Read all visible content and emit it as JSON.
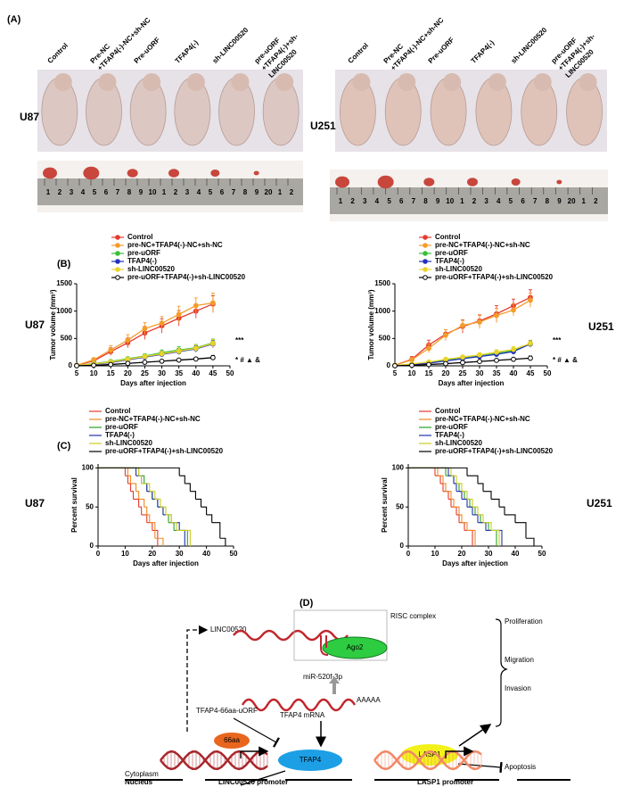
{
  "panel_labels": [
    "(A)",
    "(B)",
    "(C)",
    "(D)"
  ],
  "panel_a": {
    "groups": [
      [
        "Control"
      ],
      [
        "Pre-NC",
        "+TFAP4(-)-NC+sh-NC"
      ],
      [
        "Pre-uORF"
      ],
      [
        "TFAP4(-)"
      ],
      [
        "sh-LINC00520"
      ],
      [
        "pre-uORF",
        "+TFAP4(-)+sh-",
        "LINC00520"
      ]
    ],
    "cell_lines": [
      "U87",
      "U251"
    ],
    "ruler_labels": [
      "1",
      "2",
      "3",
      "4",
      "5",
      "6",
      "7",
      "8",
      "9",
      "10",
      "1",
      "2",
      "3",
      "4",
      "5",
      "6",
      "7",
      "8",
      "9",
      "20",
      "1",
      "2"
    ]
  },
  "chart_data": [
    {
      "type": "line",
      "side_label": "U87",
      "ylabel": "Tumor volume (mm³)",
      "xlabel": "Days after injection",
      "annotations": [
        "***",
        "* # ▲ &"
      ],
      "x": [
        5,
        10,
        15,
        20,
        25,
        30,
        35,
        40,
        45
      ],
      "xlim": [
        5,
        50
      ],
      "xticks": [
        5,
        10,
        15,
        20,
        25,
        30,
        35,
        40,
        45,
        50
      ],
      "ylim": [
        0,
        1500
      ],
      "yticks": [
        0,
        500,
        1000,
        1500
      ],
      "series": [
        {
          "name": "Control",
          "color": "#e53a2f",
          "marker": "filled",
          "values": [
            10,
            90,
            260,
            420,
            600,
            730,
            870,
            1000,
            1130
          ],
          "errors": [
            5,
            40,
            70,
            90,
            120,
            130,
            140,
            130,
            150
          ]
        },
        {
          "name": "pre-NC+TFAP4(-)-NC+sh-NC",
          "color": "#f39c2b",
          "marker": "filled",
          "values": [
            10,
            110,
            290,
            470,
            680,
            780,
            940,
            1100,
            1150
          ],
          "errors": [
            5,
            40,
            80,
            100,
            110,
            120,
            150,
            140,
            180
          ]
        },
        {
          "name": "pre-uORF",
          "color": "#3bbf3b",
          "marker": "filled",
          "values": [
            5,
            40,
            80,
            130,
            180,
            240,
            290,
            330,
            420
          ],
          "errors": [
            3,
            15,
            25,
            30,
            40,
            50,
            60,
            60,
            70
          ]
        },
        {
          "name": "TFAP4(-)",
          "color": "#2233bb",
          "marker": "filled",
          "values": [
            5,
            30,
            60,
            110,
            160,
            210,
            260,
            310,
            400
          ],
          "errors": [
            3,
            15,
            25,
            30,
            40,
            50,
            55,
            60,
            70
          ]
        },
        {
          "name": "sh-LINC00520",
          "color": "#e8d42a",
          "marker": "filled",
          "values": [
            5,
            35,
            70,
            120,
            170,
            220,
            270,
            320,
            410
          ],
          "errors": [
            3,
            15,
            25,
            30,
            40,
            50,
            55,
            60,
            70
          ]
        },
        {
          "name": "pre-uORF+TFAP4(-)+sh-LINC00520",
          "color": "#000000",
          "marker": "open",
          "values": [
            2,
            10,
            25,
            45,
            65,
            85,
            105,
            125,
            150
          ],
          "errors": [
            1,
            5,
            8,
            10,
            15,
            20,
            25,
            30,
            40
          ]
        }
      ]
    },
    {
      "type": "line",
      "side_label": "U251",
      "ylabel": "Tumor volume (mm³)",
      "xlabel": "Days after injection",
      "annotations": [
        "***",
        "* # ▲ &"
      ],
      "x": [
        5,
        10,
        15,
        20,
        25,
        30,
        35,
        40,
        45
      ],
      "xlim": [
        5,
        50
      ],
      "xticks": [
        5,
        10,
        15,
        20,
        25,
        30,
        35,
        40,
        45,
        50
      ],
      "ylim": [
        0,
        1500
      ],
      "yticks": [
        0,
        500,
        1000,
        1500
      ],
      "series": [
        {
          "name": "Control",
          "color": "#e53a2f",
          "marker": "filled",
          "values": [
            10,
            120,
            380,
            580,
            720,
            820,
            950,
            1100,
            1250
          ],
          "errors": [
            5,
            50,
            90,
            80,
            120,
            110,
            150,
            120,
            140
          ]
        },
        {
          "name": "pre-NC+TFAP4(-)-NC+sh-NC",
          "color": "#f39c2b",
          "marker": "filled",
          "values": [
            10,
            110,
            320,
            560,
            740,
            800,
            920,
            1020,
            1200
          ],
          "errors": [
            5,
            40,
            80,
            100,
            90,
            120,
            130,
            110,
            130
          ]
        },
        {
          "name": "pre-uORF",
          "color": "#3bbf3b",
          "marker": "filled",
          "values": [
            5,
            30,
            60,
            110,
            150,
            190,
            230,
            280,
            400
          ],
          "errors": [
            3,
            15,
            20,
            30,
            35,
            40,
            45,
            50,
            60
          ]
        },
        {
          "name": "TFAP4(-)",
          "color": "#2233bb",
          "marker": "filled",
          "values": [
            5,
            25,
            50,
            90,
            130,
            170,
            210,
            260,
            400
          ],
          "errors": [
            3,
            15,
            20,
            30,
            35,
            40,
            45,
            50,
            60
          ]
        },
        {
          "name": "sh-LINC00520",
          "color": "#e8d42a",
          "marker": "filled",
          "values": [
            5,
            35,
            70,
            120,
            160,
            200,
            250,
            300,
            410
          ],
          "errors": [
            3,
            15,
            20,
            30,
            35,
            40,
            45,
            50,
            60
          ]
        },
        {
          "name": "pre-uORF+TFAP4(-)+sh-LINC00520",
          "color": "#000000",
          "marker": "open",
          "values": [
            2,
            10,
            25,
            40,
            60,
            80,
            100,
            120,
            140
          ],
          "errors": [
            1,
            5,
            8,
            10,
            15,
            20,
            25,
            30,
            40
          ]
        }
      ]
    },
    {
      "type": "step",
      "side_label": "U87",
      "ylabel": "Percent survival",
      "xlabel": "Days after injection",
      "xlim": [
        0,
        50
      ],
      "xticks": [
        0,
        10,
        20,
        30,
        40,
        50
      ],
      "ylim": [
        0,
        105
      ],
      "yticks": [
        0,
        50,
        100
      ],
      "series": [
        {
          "name": "Control",
          "color": "#e53a2f",
          "x": [
            0,
            10,
            11,
            12,
            13,
            15,
            16,
            18,
            20,
            22
          ],
          "values": [
            100,
            90,
            80,
            70,
            60,
            50,
            40,
            30,
            20,
            0
          ]
        },
        {
          "name": "pre-NC+TFAP4(-)-NC+sh-NC",
          "color": "#f08a24",
          "x": [
            0,
            11,
            12,
            14,
            15,
            17,
            18,
            19,
            21,
            24
          ],
          "values": [
            100,
            90,
            80,
            70,
            60,
            50,
            40,
            30,
            10,
            0
          ]
        },
        {
          "name": "pre-uORF",
          "color": "#2ca02c",
          "x": [
            0,
            15,
            17,
            18,
            20,
            22,
            24,
            26,
            28,
            33
          ],
          "values": [
            100,
            90,
            80,
            70,
            60,
            50,
            40,
            30,
            20,
            0
          ]
        },
        {
          "name": "TFAP4(-)",
          "color": "#2233aa",
          "x": [
            0,
            14,
            16,
            18,
            20,
            22,
            24,
            27,
            30,
            32
          ],
          "values": [
            100,
            90,
            80,
            70,
            60,
            50,
            40,
            30,
            20,
            0
          ]
        },
        {
          "name": "sh-LINC00520",
          "color": "#cccc22",
          "x": [
            0,
            15,
            16,
            19,
            21,
            23,
            25,
            27,
            29,
            34
          ],
          "values": [
            100,
            90,
            80,
            70,
            60,
            50,
            40,
            30,
            20,
            0
          ]
        },
        {
          "name": "pre-uORF+TFAP4(-)+sh-LINC00520",
          "color": "#000000",
          "x": [
            0,
            30,
            32,
            34,
            36,
            38,
            40,
            42,
            45,
            47
          ],
          "values": [
            100,
            90,
            80,
            70,
            60,
            50,
            40,
            30,
            10,
            0
          ]
        }
      ]
    },
    {
      "type": "step",
      "side_label": "U251",
      "ylabel": "Percent survival",
      "xlabel": "Days after injection",
      "xlim": [
        0,
        50
      ],
      "xticks": [
        0,
        10,
        20,
        30,
        40,
        50
      ],
      "ylim": [
        0,
        105
      ],
      "yticks": [
        0,
        50,
        100
      ],
      "series": [
        {
          "name": "Control",
          "color": "#e53a2f",
          "x": [
            0,
            10,
            12,
            13,
            15,
            16,
            18,
            19,
            21,
            24
          ],
          "values": [
            100,
            90,
            80,
            70,
            60,
            50,
            40,
            30,
            20,
            0
          ]
        },
        {
          "name": "pre-NC+TFAP4(-)-NC+sh-NC",
          "color": "#f08a24",
          "x": [
            0,
            11,
            13,
            14,
            16,
            17,
            19,
            20,
            22,
            25
          ],
          "values": [
            100,
            90,
            80,
            70,
            60,
            50,
            40,
            30,
            20,
            0
          ]
        },
        {
          "name": "pre-uORF",
          "color": "#2ca02c",
          "x": [
            0,
            14,
            17,
            19,
            21,
            23,
            25,
            27,
            30,
            33
          ],
          "values": [
            100,
            90,
            80,
            70,
            60,
            50,
            40,
            30,
            20,
            0
          ]
        },
        {
          "name": "TFAP4(-)",
          "color": "#2233aa",
          "x": [
            0,
            15,
            17,
            18,
            20,
            22,
            24,
            26,
            29,
            35
          ],
          "values": [
            100,
            90,
            80,
            70,
            60,
            50,
            40,
            30,
            20,
            0
          ]
        },
        {
          "name": "sh-LINC00520",
          "color": "#cccc22",
          "x": [
            0,
            16,
            18,
            20,
            22,
            24,
            26,
            28,
            31,
            34
          ],
          "values": [
            100,
            90,
            80,
            70,
            60,
            50,
            40,
            30,
            20,
            0
          ]
        },
        {
          "name": "pre-uORF+TFAP4(-)+sh-LINC00520",
          "color": "#000000",
          "x": [
            0,
            22,
            26,
            28,
            31,
            34,
            36,
            40,
            44,
            47
          ],
          "values": [
            100,
            90,
            80,
            70,
            60,
            50,
            40,
            30,
            10,
            0
          ]
        }
      ]
    }
  ],
  "panel_d": {
    "lnc": "LINC00520",
    "risc": "RISC complex",
    "ago2": "Ago2",
    "mir": "miR-520f-3p",
    "polya": "AAAAA",
    "uorf": "TFAP4-66aa-uORF",
    "mrna": "TFAP4 mRNA",
    "peptide": "66aa",
    "tfap4": "TFAP4",
    "lasp1": "LASP1",
    "outcomes": [
      "Proliferation",
      "Migration",
      "Invasion"
    ],
    "apoptosis": "Apoptosis",
    "cytoplasm": "Cytoplasm",
    "nucleus": "Nucleus",
    "lnc_promoter": "LINC00520 promoter",
    "lasp1_promoter": "LASP1 promoter"
  }
}
